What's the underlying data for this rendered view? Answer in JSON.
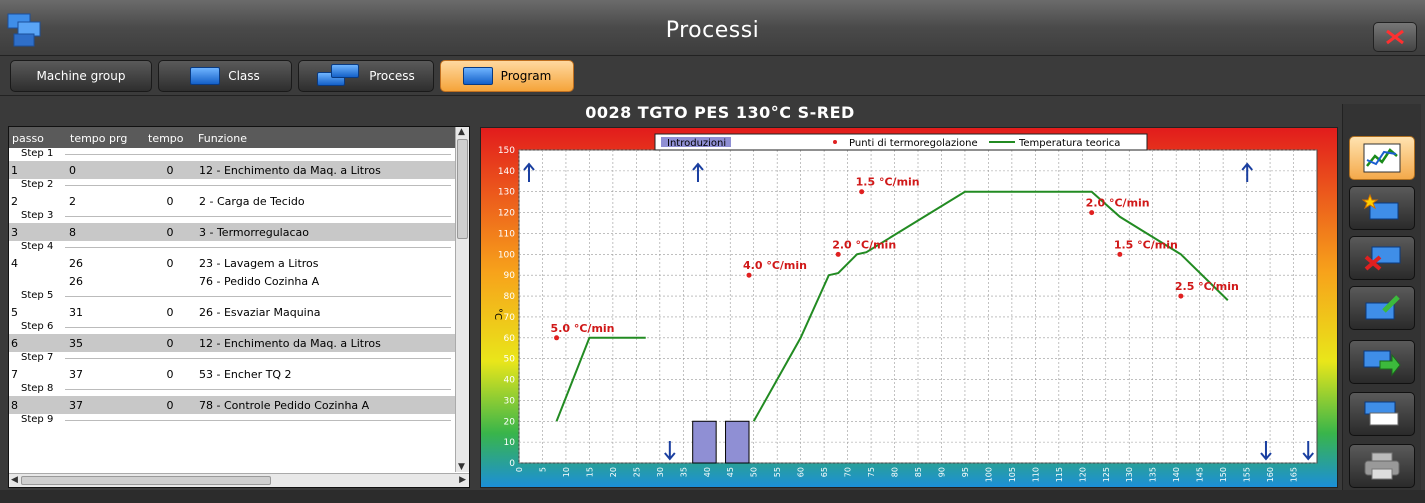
{
  "window": {
    "title": "Processi"
  },
  "toolbar": {
    "machine_group": "Machine group",
    "class": "Class",
    "process": "Process",
    "program": "Program"
  },
  "program_title": "0028 TGTO PES 130°C S-RED",
  "table": {
    "headers": [
      "passo",
      "tempo prg",
      "tempo",
      "Funzione"
    ],
    "steps": [
      {
        "label": "Step 1",
        "rows": [
          {
            "passo": "1",
            "tempo_prg": "0",
            "tempo": "0",
            "funzione": "12 - Enchimento da Maq. a Litros",
            "gray": true
          }
        ]
      },
      {
        "label": "Step 2",
        "rows": [
          {
            "passo": "2",
            "tempo_prg": "2",
            "tempo": "0",
            "funzione": "2 - Carga de Tecido",
            "gray": false
          }
        ]
      },
      {
        "label": "Step 3",
        "rows": [
          {
            "passo": "3",
            "tempo_prg": "8",
            "tempo": "0",
            "funzione": "3 - Termorregulacao",
            "gray": true
          }
        ]
      },
      {
        "label": "Step 4",
        "rows": [
          {
            "passo": "4",
            "tempo_prg": "26",
            "tempo": "0",
            "funzione": "23 - Lavagem a Litros",
            "gray": false
          },
          {
            "passo": "",
            "tempo_prg": "26",
            "tempo": "",
            "funzione": "76 - Pedido Cozinha A",
            "gray": false
          }
        ]
      },
      {
        "label": "Step 5",
        "rows": [
          {
            "passo": "5",
            "tempo_prg": "31",
            "tempo": "0",
            "funzione": "26 - Esvaziar Maquina",
            "gray": false
          }
        ]
      },
      {
        "label": "Step 6",
        "rows": [
          {
            "passo": "6",
            "tempo_prg": "35",
            "tempo": "0",
            "funzione": "12 - Enchimento da Maq. a Litros",
            "gray": true
          }
        ]
      },
      {
        "label": "Step 7",
        "rows": [
          {
            "passo": "7",
            "tempo_prg": "37",
            "tempo": "0",
            "funzione": "53 - Encher TQ 2",
            "gray": false
          }
        ]
      },
      {
        "label": "Step 8",
        "rows": [
          {
            "passo": "8",
            "tempo_prg": "37",
            "tempo": "0",
            "funzione": "78 - Controle Pedido Cozinha A",
            "gray": true
          }
        ]
      },
      {
        "label": "Step 9",
        "rows": []
      }
    ]
  },
  "chart_data": {
    "type": "line",
    "ylabel": "°C",
    "xlim": [
      0,
      170
    ],
    "ylim": [
      0,
      150
    ],
    "xticks": [
      0,
      5,
      10,
      15,
      20,
      25,
      30,
      35,
      40,
      45,
      50,
      55,
      60,
      65,
      70,
      75,
      80,
      85,
      90,
      95,
      100,
      105,
      110,
      115,
      120,
      125,
      130,
      135,
      140,
      145,
      150,
      155,
      160,
      165
    ],
    "yticks": [
      0,
      10,
      20,
      30,
      40,
      50,
      60,
      70,
      80,
      90,
      100,
      110,
      120,
      130,
      140,
      150
    ],
    "legend": [
      "Introduzioni",
      "Punti di termoregolazione",
      "Temperatura teorica"
    ],
    "series": [
      {
        "name": "Temperatura teorica",
        "color": "#228b22",
        "segments": [
          [
            [
              8,
              20
            ],
            [
              15,
              60
            ],
            [
              27,
              60
            ]
          ],
          [
            [
              50,
              20
            ],
            [
              60,
              60
            ],
            [
              66,
              90
            ],
            [
              68,
              91
            ],
            [
              72,
              100
            ],
            [
              74,
              101
            ],
            [
              95,
              130
            ],
            [
              122,
              130
            ],
            [
              128,
              118
            ],
            [
              141,
              100
            ],
            [
              151,
              78
            ]
          ]
        ]
      }
    ],
    "bars": {
      "name": "Introduzioni",
      "color": "#8f8fd4",
      "items": [
        {
          "x0": 37,
          "x1": 42,
          "value": 20
        },
        {
          "x0": 44,
          "x1": 49,
          "value": 20
        }
      ]
    },
    "points": [
      {
        "x": 8,
        "y": 60,
        "label": "5.0 °C/min"
      },
      {
        "x": 49,
        "y": 90,
        "label": "4.0 °C/min"
      },
      {
        "x": 68,
        "y": 100,
        "label": "2.0 °C/min"
      },
      {
        "x": 73,
        "y": 130,
        "label": "1.5 °C/min"
      },
      {
        "x": 122,
        "y": 120,
        "label": "2.0 °C/min"
      },
      {
        "x": 128,
        "y": 100,
        "label": "1.5 °C/min"
      },
      {
        "x": 141,
        "y": 80,
        "label": "2.5 °C/min"
      }
    ],
    "up_arrows_x": [
      0,
      36,
      153
    ],
    "down_arrows_x": [
      30,
      157,
      166
    ],
    "grid": true,
    "legend_position": "top-center"
  },
  "colors": {
    "accent": "#f5a43a",
    "series_line": "#228b22",
    "marker": "#e02020",
    "arrow": "#1a3fa0"
  }
}
